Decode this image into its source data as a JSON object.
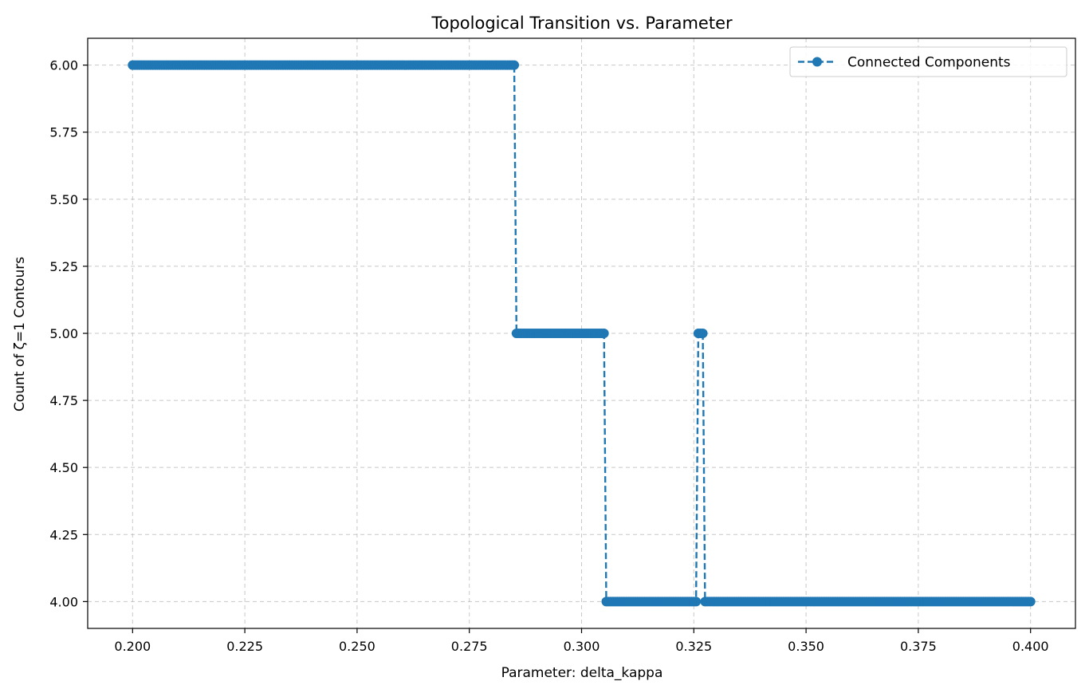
{
  "chart_data": {
    "type": "line",
    "title": "Topological Transition vs. Parameter",
    "xlabel": "Parameter: delta_kappa",
    "ylabel": "Count of ζ=1 Contours",
    "xlim": [
      0.19,
      0.41
    ],
    "ylim": [
      3.9,
      6.1
    ],
    "x_ticks": [
      0.2,
      0.225,
      0.25,
      0.275,
      0.3,
      0.325,
      0.35,
      0.375,
      0.4
    ],
    "x_tick_labels": [
      "0.200",
      "0.225",
      "0.250",
      "0.275",
      "0.300",
      "0.325",
      "0.350",
      "0.375",
      "0.400"
    ],
    "y_ticks": [
      4.0,
      4.25,
      4.5,
      4.75,
      5.0,
      5.25,
      5.5,
      5.75,
      6.0
    ],
    "y_tick_labels": [
      "4.00",
      "4.25",
      "4.50",
      "4.75",
      "5.00",
      "5.25",
      "5.50",
      "5.75",
      "6.00"
    ],
    "grid": true,
    "legend_position": "upper-right",
    "series": [
      {
        "name": "Connected Components",
        "color": "#1f77b4",
        "line_style": "dashed",
        "marker": "circle",
        "x_range": [
          0.2,
          0.4
        ],
        "x_step": 0.0005,
        "segments": [
          {
            "x_start": 0.2,
            "x_end": 0.285,
            "y": 6
          },
          {
            "x_start": 0.2855,
            "x_end": 0.305,
            "y": 5
          },
          {
            "x_start": 0.3055,
            "x_end": 0.3255,
            "y": 4
          },
          {
            "x_start": 0.326,
            "x_end": 0.327,
            "y": 5
          },
          {
            "x_start": 0.3275,
            "x_end": 0.4,
            "y": 4
          }
        ]
      }
    ]
  }
}
